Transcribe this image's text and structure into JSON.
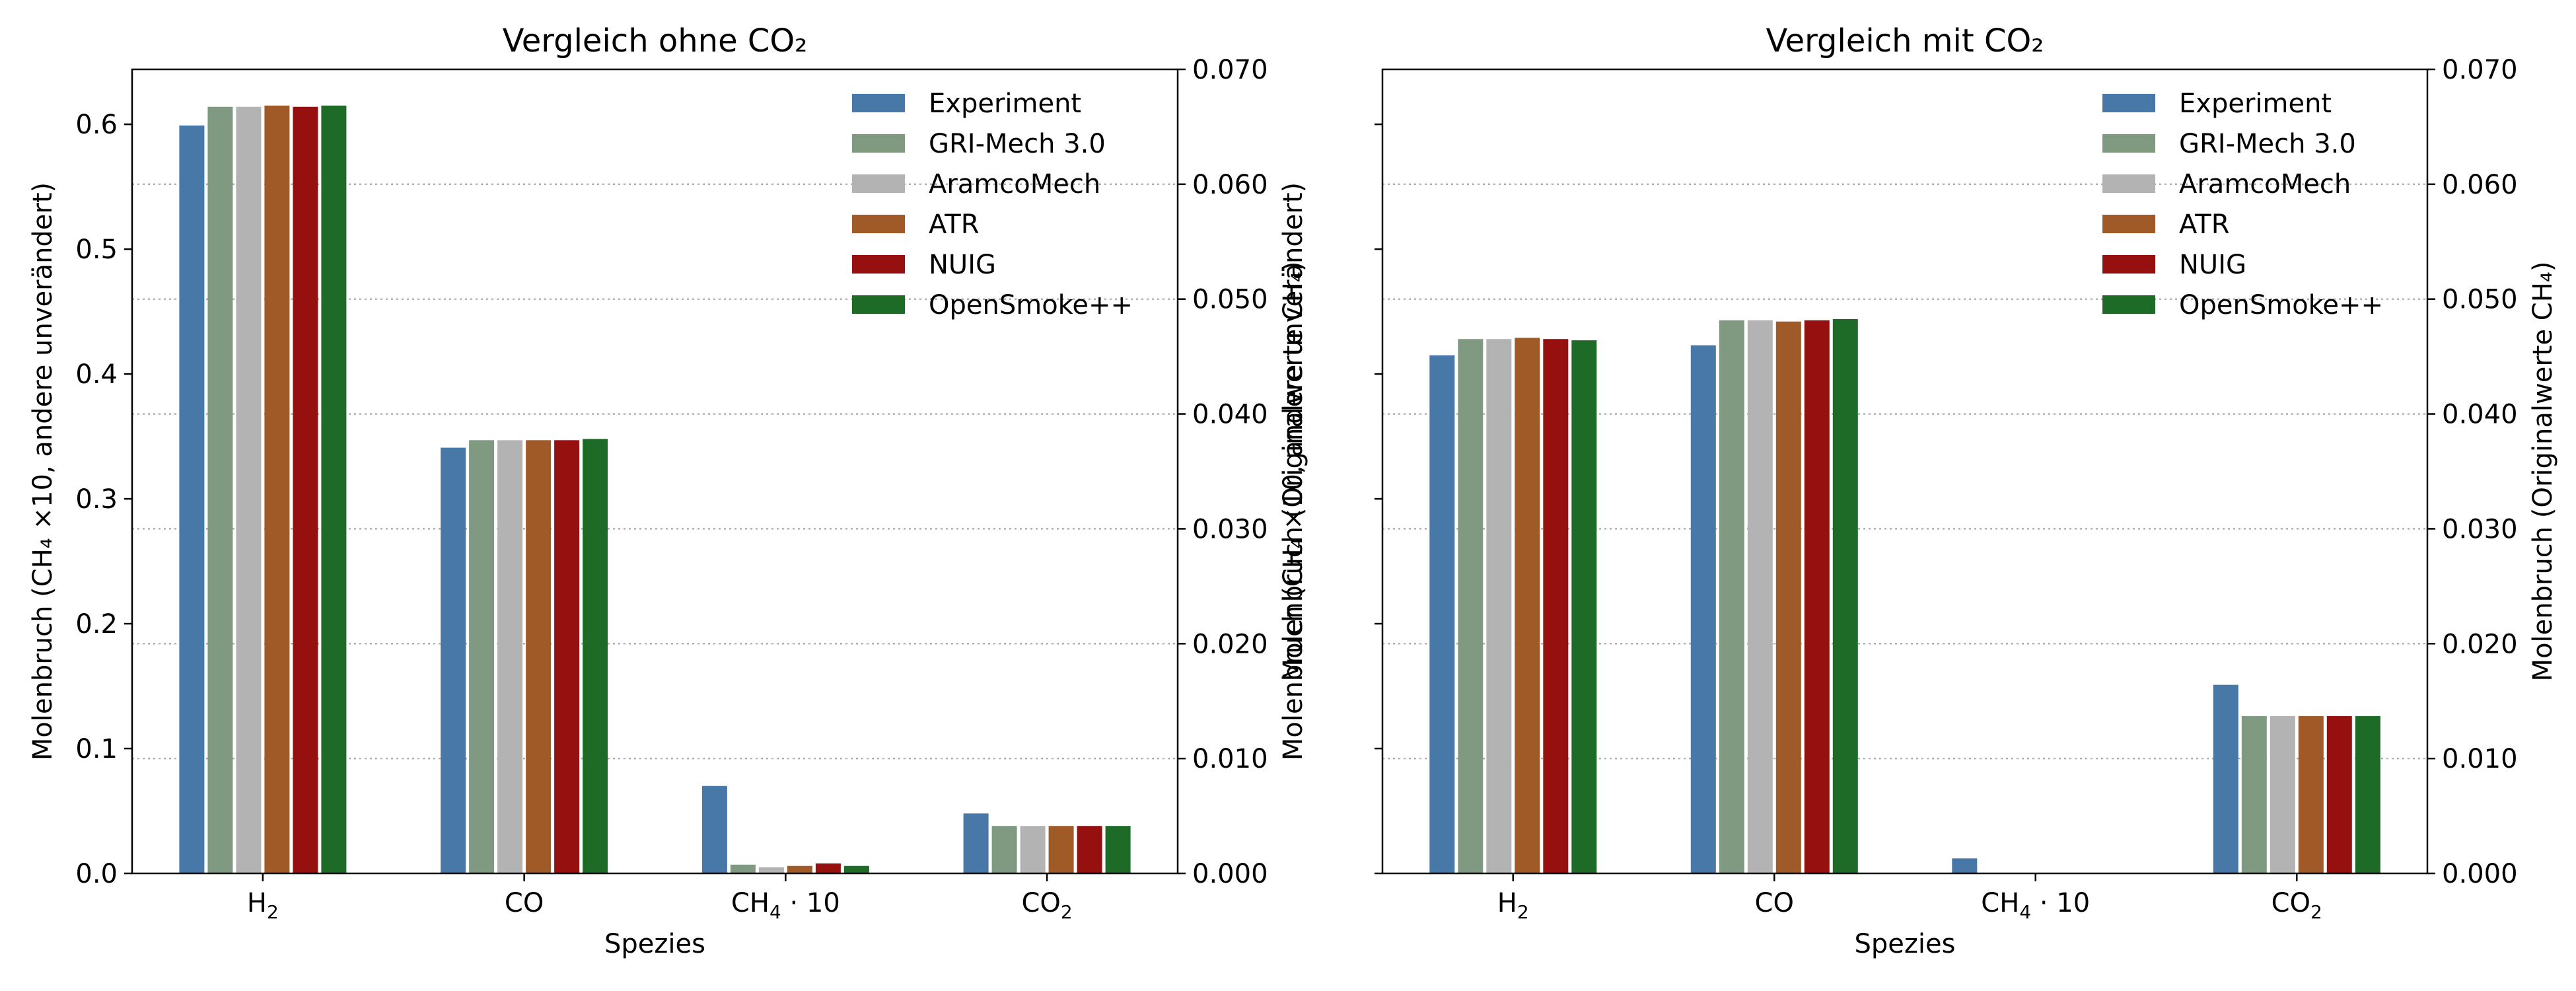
{
  "chart_data": [
    {
      "type": "bar",
      "title": "Vergleich ohne CO₂",
      "xlabel": "Spezies",
      "ylabel": "Molenbruch (CH₄ ×10, andere unverändert)",
      "ylabel_right": "Molenbruch (Originalwerte CH₄)",
      "ylim": [
        0,
        0.644
      ],
      "ylim_right": [
        0,
        0.07
      ],
      "yticks": [
        "0.0",
        "0.1",
        "0.2",
        "0.3",
        "0.4",
        "0.5",
        "0.6"
      ],
      "yticks_right": [
        "0.000",
        "0.010",
        "0.020",
        "0.030",
        "0.040",
        "0.050",
        "0.060",
        "0.070"
      ],
      "categories": [
        {
          "base": "H",
          "sub": "2",
          "tail": ""
        },
        {
          "base": "CO",
          "sub": "",
          "tail": ""
        },
        {
          "base": "CH",
          "sub": "4",
          "tail": " · 10"
        },
        {
          "base": "CO",
          "sub": "2",
          "tail": ""
        }
      ],
      "grid": "horizontal dotted",
      "legend_position": "top-right",
      "series": [
        {
          "name": "Experiment",
          "color": "#4878a8",
          "values": [
            0.599,
            0.341,
            0.07,
            0.048
          ]
        },
        {
          "name": "GRI-Mech 3.0",
          "color": "#7f9a80",
          "values": [
            0.614,
            0.347,
            0.007,
            0.038
          ]
        },
        {
          "name": "AramcoMech",
          "color": "#b3b3b3",
          "values": [
            0.614,
            0.347,
            0.005,
            0.038
          ]
        },
        {
          "name": "ATR",
          "color": "#a05a28",
          "values": [
            0.615,
            0.347,
            0.006,
            0.038
          ]
        },
        {
          "name": "NUIG",
          "color": "#961010",
          "values": [
            0.614,
            0.347,
            0.008,
            0.038
          ]
        },
        {
          "name": "OpenSmoke++",
          "color": "#1e6b28",
          "values": [
            0.615,
            0.348,
            0.006,
            0.038
          ]
        }
      ]
    },
    {
      "type": "bar",
      "title": "Vergleich mit CO₂",
      "xlabel": "Spezies",
      "ylabel": "Molenbruch (CH₄ ×10, andere unverändert)",
      "ylabel_right": "Molenbruch (Originalwerte CH₄)",
      "ylim": [
        0,
        0.644
      ],
      "ylim_right": [
        0,
        0.07
      ],
      "yticks": [],
      "yticks_right": [
        "0.000",
        "0.010",
        "0.020",
        "0.030",
        "0.040",
        "0.050",
        "0.060",
        "0.070"
      ],
      "categories": [
        {
          "base": "H",
          "sub": "2",
          "tail": ""
        },
        {
          "base": "CO",
          "sub": "",
          "tail": ""
        },
        {
          "base": "CH",
          "sub": "4",
          "tail": " · 10"
        },
        {
          "base": "CO",
          "sub": "2",
          "tail": ""
        }
      ],
      "grid": "horizontal dotted",
      "legend_position": "top-right",
      "series": [
        {
          "name": "Experiment",
          "color": "#4878a8",
          "values": [
            0.415,
            0.423,
            0.012,
            0.151
          ]
        },
        {
          "name": "GRI-Mech 3.0",
          "color": "#7f9a80",
          "values": [
            0.428,
            0.443,
            0.0,
            0.126
          ]
        },
        {
          "name": "AramcoMech",
          "color": "#b3b3b3",
          "values": [
            0.428,
            0.443,
            0.0,
            0.126
          ]
        },
        {
          "name": "ATR",
          "color": "#a05a28",
          "values": [
            0.429,
            0.442,
            0.0,
            0.126
          ]
        },
        {
          "name": "NUIG",
          "color": "#961010",
          "values": [
            0.428,
            0.443,
            0.0,
            0.126
          ]
        },
        {
          "name": "OpenSmoke++",
          "color": "#1e6b28",
          "values": [
            0.427,
            0.444,
            0.0,
            0.126
          ]
        }
      ]
    }
  ]
}
